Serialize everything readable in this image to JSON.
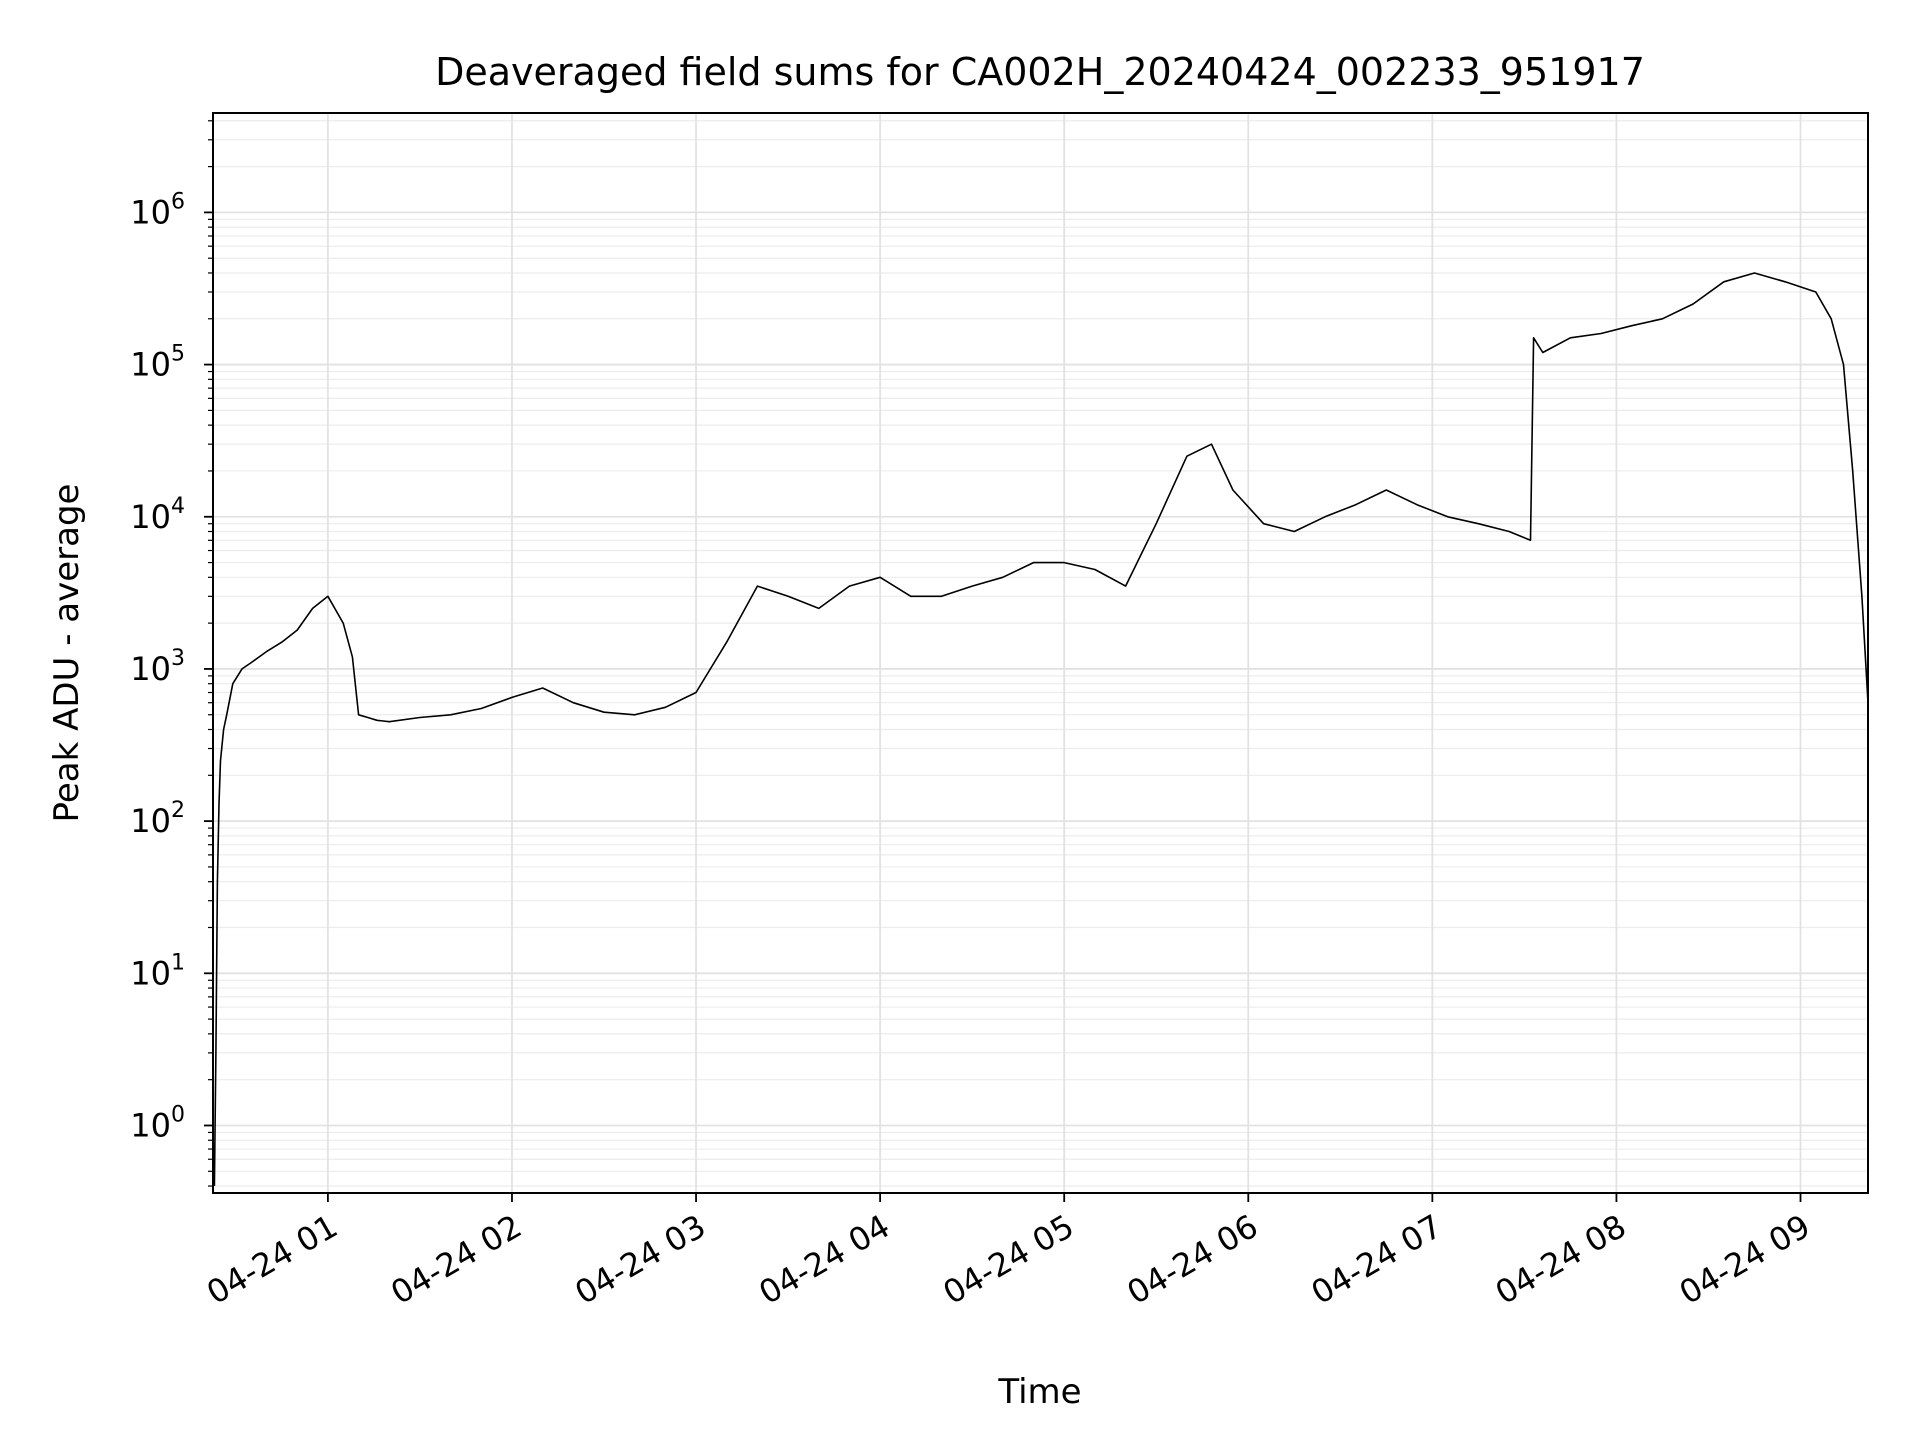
{
  "chart_data": {
    "type": "line",
    "title": "Deaveraged field sums for CA002H_20240424_002233_951917",
    "xlabel": "Time",
    "ylabel": "Peak ADU - average",
    "x_scale": "time",
    "y_scale": "log",
    "xlim": [
      "2024-04-24 00:22:33",
      "2024-04-24 09:22:00"
    ],
    "ylim": [
      0.36,
      4500000
    ],
    "grid": true,
    "grid_minor": true,
    "line_color": "#000000",
    "x_ticks": [
      {
        "value": "2024-04-24 01:00",
        "label": "04-24 01"
      },
      {
        "value": "2024-04-24 02:00",
        "label": "04-24 02"
      },
      {
        "value": "2024-04-24 03:00",
        "label": "04-24 03"
      },
      {
        "value": "2024-04-24 04:00",
        "label": "04-24 04"
      },
      {
        "value": "2024-04-24 05:00",
        "label": "04-24 05"
      },
      {
        "value": "2024-04-24 06:00",
        "label": "04-24 06"
      },
      {
        "value": "2024-04-24 07:00",
        "label": "04-24 07"
      },
      {
        "value": "2024-04-24 08:00",
        "label": "04-24 08"
      },
      {
        "value": "2024-04-24 09:00",
        "label": "04-24 09"
      }
    ],
    "y_ticks": [
      {
        "value": 1,
        "base": "10",
        "exp": "0"
      },
      {
        "value": 10,
        "base": "10",
        "exp": "1"
      },
      {
        "value": 100,
        "base": "10",
        "exp": "2"
      },
      {
        "value": 1000,
        "base": "10",
        "exp": "3"
      },
      {
        "value": 10000,
        "base": "10",
        "exp": "4"
      },
      {
        "value": 100000,
        "base": "10",
        "exp": "5"
      },
      {
        "value": 1000000,
        "base": "10",
        "exp": "6"
      }
    ],
    "series": [
      {
        "x": [
          "2024-04-24 00:23:00",
          "2024-04-24 00:23:30",
          "2024-04-24 00:24:00",
          "2024-04-24 00:24:30",
          "2024-04-24 00:25:00",
          "2024-04-24 00:26:00",
          "2024-04-24 00:27:00",
          "2024-04-24 00:29:00",
          "2024-04-24 00:32:00",
          "2024-04-24 00:35:00",
          "2024-04-24 00:40:00",
          "2024-04-24 00:45:00",
          "2024-04-24 00:50:00",
          "2024-04-24 00:55:00",
          "2024-04-24 01:00:00",
          "2024-04-24 01:05:00",
          "2024-04-24 01:08:00",
          "2024-04-24 01:10:00",
          "2024-04-24 01:13:00",
          "2024-04-24 01:16:00",
          "2024-04-24 01:20:00",
          "2024-04-24 01:30:00",
          "2024-04-24 01:40:00",
          "2024-04-24 01:50:00",
          "2024-04-24 02:00:00",
          "2024-04-24 02:10:00",
          "2024-04-24 02:20:00",
          "2024-04-24 02:30:00",
          "2024-04-24 02:40:00",
          "2024-04-24 02:50:00",
          "2024-04-24 03:00:00",
          "2024-04-24 03:10:00",
          "2024-04-24 03:20:00",
          "2024-04-24 03:30:00",
          "2024-04-24 03:40:00",
          "2024-04-24 03:50:00",
          "2024-04-24 04:00:00",
          "2024-04-24 04:10:00",
          "2024-04-24 04:20:00",
          "2024-04-24 04:30:00",
          "2024-04-24 04:40:00",
          "2024-04-24 04:50:00",
          "2024-04-24 05:00:00",
          "2024-04-24 05:10:00",
          "2024-04-24 05:20:00",
          "2024-04-24 05:30:00",
          "2024-04-24 05:40:00",
          "2024-04-24 05:48:00",
          "2024-04-24 05:55:00",
          "2024-04-24 06:05:00",
          "2024-04-24 06:15:00",
          "2024-04-24 06:25:00",
          "2024-04-24 06:35:00",
          "2024-04-24 06:45:00",
          "2024-04-24 06:55:00",
          "2024-04-24 07:05:00",
          "2024-04-24 07:15:00",
          "2024-04-24 07:25:00",
          "2024-04-24 07:32:00",
          "2024-04-24 07:33:00",
          "2024-04-24 07:36:00",
          "2024-04-24 07:45:00",
          "2024-04-24 07:55:00",
          "2024-04-24 08:05:00",
          "2024-04-24 08:15:00",
          "2024-04-24 08:25:00",
          "2024-04-24 08:35:00",
          "2024-04-24 08:45:00",
          "2024-04-24 08:55:00",
          "2024-04-24 09:05:00",
          "2024-04-24 09:10:00",
          "2024-04-24 09:14:00",
          "2024-04-24 09:17:00",
          "2024-04-24 09:20:00",
          "2024-04-24 09:22:00"
        ],
        "y": [
          0.4,
          3,
          40,
          130,
          250,
          400,
          500,
          800,
          1000,
          1100,
          1300,
          1500,
          1800,
          2500,
          3000,
          2000,
          1200,
          500,
          480,
          460,
          450,
          480,
          500,
          550,
          650,
          750,
          600,
          520,
          500,
          560,
          700,
          1500,
          3500,
          3000,
          2500,
          3500,
          4000,
          3000,
          3000,
          3500,
          4000,
          5000,
          5000,
          4500,
          3500,
          9000,
          25000,
          30000,
          15000,
          9000,
          8000,
          10000,
          12000,
          15000,
          12000,
          10000,
          9000,
          8000,
          7000,
          150000,
          120000,
          150000,
          160000,
          180000,
          200000,
          250000,
          350000,
          400000,
          350000,
          300000,
          200000,
          100000,
          20000,
          3000,
          600
        ]
      }
    ]
  }
}
